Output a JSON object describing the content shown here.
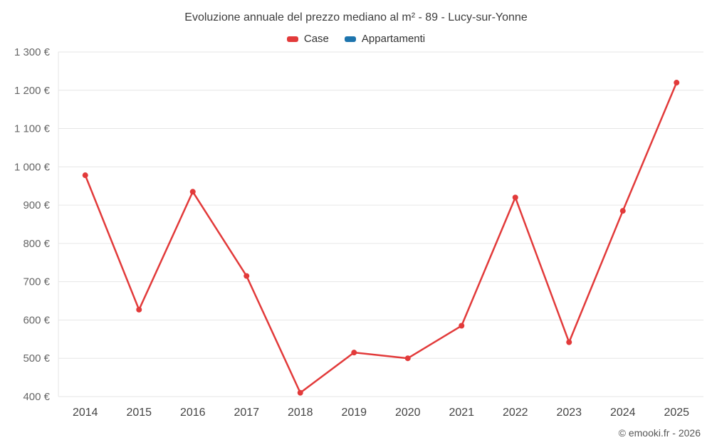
{
  "title": "Evoluzione annuale del prezzo mediano al m² - 89 - Lucy-sur-Yonne",
  "footer": "© emooki.fr - 2026",
  "legend": [
    {
      "label": "Case",
      "color": "#e23a3a"
    },
    {
      "label": "Appartamenti",
      "color": "#1d74ad"
    }
  ],
  "chart_data": {
    "type": "line",
    "title": "Evoluzione annuale del prezzo mediano al m² - 89 - Lucy-sur-Yonne",
    "x": [
      2014,
      2015,
      2016,
      2017,
      2018,
      2019,
      2020,
      2021,
      2022,
      2023,
      2024,
      2025
    ],
    "series": [
      {
        "name": "Case",
        "color": "#e23a3a",
        "values": [
          978,
          627,
          935,
          715,
          410,
          515,
          500,
          585,
          920,
          542,
          885,
          1220
        ]
      },
      {
        "name": "Appartamenti",
        "color": "#1d74ad",
        "values": []
      }
    ],
    "xlabel": "",
    "ylabel": "",
    "ylim": [
      400,
      1300
    ],
    "ytick_step": 100,
    "ytick_suffix": "€",
    "grid": "horizontal",
    "legend_position": "top"
  }
}
